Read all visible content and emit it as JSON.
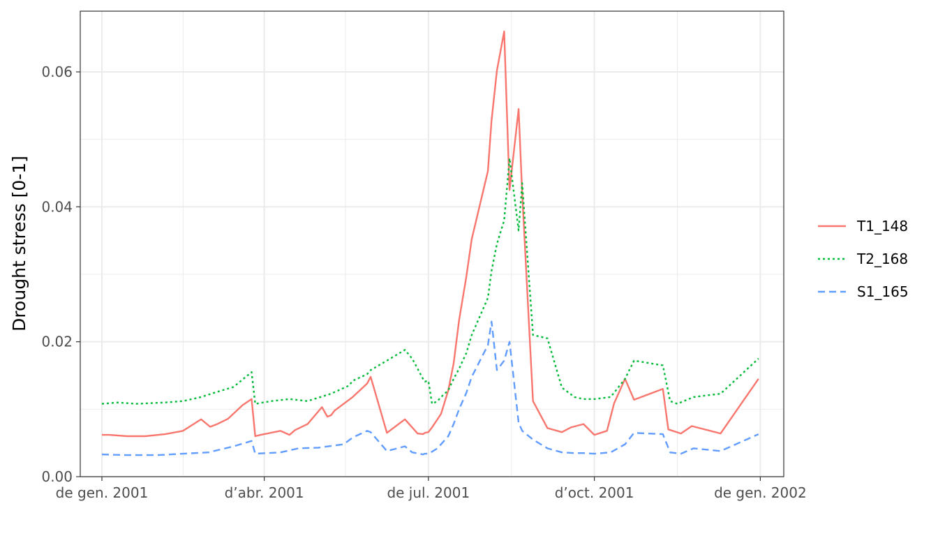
{
  "chart_data": {
    "type": "line",
    "title": "",
    "xlabel": "",
    "ylabel": "Drought stress [0-1]",
    "xlim": [
      "2000-12-20",
      "2002-01-14"
    ],
    "ylim": [
      0,
      0.069
    ],
    "grid": true,
    "legend_position": "right",
    "x_ticks": [
      {
        "date": "2001-01-01",
        "label": "de gen. 2001"
      },
      {
        "date": "2001-04-01",
        "label": "d’abr. 2001"
      },
      {
        "date": "2001-07-01",
        "label": "de jul. 2001"
      },
      {
        "date": "2001-10-01",
        "label": "d’oct. 2001"
      },
      {
        "date": "2002-01-01",
        "label": "de gen. 2002"
      }
    ],
    "x_minor_ticks": [
      "2001-02-15",
      "2001-05-16",
      "2001-08-16",
      "2001-11-16"
    ],
    "y_ticks": [
      {
        "value": 0.0,
        "label": "0.00"
      },
      {
        "value": 0.02,
        "label": "0.02"
      },
      {
        "value": 0.04,
        "label": "0.04"
      },
      {
        "value": 0.06,
        "label": "0.06"
      }
    ],
    "y_minor_ticks": [
      0.01,
      0.03,
      0.05
    ],
    "series": [
      {
        "name": "T1_148",
        "color": "#F8766D",
        "dash": "solid",
        "x": [
          "2001-01-01",
          "2001-01-05",
          "2001-01-15",
          "2001-01-25",
          "2001-02-05",
          "2001-02-15",
          "2001-02-25",
          "2001-03-02",
          "2001-03-06",
          "2001-03-12",
          "2001-03-20",
          "2001-03-25",
          "2001-03-27",
          "2001-03-30",
          "2001-04-10",
          "2001-04-15",
          "2001-04-18",
          "2001-04-25",
          "2001-05-03",
          "2001-05-06",
          "2001-05-08",
          "2001-05-10",
          "2001-05-20",
          "2001-05-28",
          "2001-05-30",
          "2001-06-08",
          "2001-06-18",
          "2001-06-25",
          "2001-06-28",
          "2001-06-29",
          "2001-07-01",
          "2001-07-03",
          "2001-07-06",
          "2001-07-08",
          "2001-07-12",
          "2001-07-15",
          "2001-07-18",
          "2001-07-22",
          "2001-07-25",
          "2001-08-03",
          "2001-08-05",
          "2001-08-08",
          "2001-08-12",
          "2001-08-15",
          "2001-08-20",
          "2001-08-22",
          "2001-08-28",
          "2001-09-05",
          "2001-09-13",
          "2001-09-18",
          "2001-09-25",
          "2001-10-01",
          "2001-10-08",
          "2001-10-12",
          "2001-10-18",
          "2001-10-23",
          "2001-11-08",
          "2001-11-11",
          "2001-11-18",
          "2001-11-24",
          "2001-12-10",
          "2001-12-31"
        ],
        "values": [
          0.0062,
          0.0062,
          0.006,
          0.006,
          0.0063,
          0.0068,
          0.0085,
          0.0074,
          0.0078,
          0.0086,
          0.0106,
          0.0115,
          0.006,
          0.0062,
          0.0068,
          0.0062,
          0.0069,
          0.0078,
          0.0103,
          0.0089,
          0.0091,
          0.0098,
          0.0118,
          0.0138,
          0.0148,
          0.0065,
          0.0085,
          0.0064,
          0.0063,
          0.0065,
          0.0066,
          0.0073,
          0.0085,
          0.0093,
          0.0128,
          0.0168,
          0.0232,
          0.0296,
          0.0352,
          0.0453,
          0.0528,
          0.0602,
          0.066,
          0.0425,
          0.0545,
          0.042,
          0.0112,
          0.0072,
          0.0066,
          0.0073,
          0.0078,
          0.0062,
          0.0068,
          0.0109,
          0.0145,
          0.0114,
          0.013,
          0.007,
          0.0064,
          0.0075,
          0.0064,
          0.0145
        ]
      },
      {
        "name": "T2_168",
        "color": "#00BA38",
        "dash": "dotted",
        "x": [
          "2001-01-01",
          "2001-01-10",
          "2001-01-20",
          "2001-02-05",
          "2001-02-15",
          "2001-02-25",
          "2001-03-05",
          "2001-03-15",
          "2001-03-25",
          "2001-03-27",
          "2001-04-05",
          "2001-04-15",
          "2001-04-25",
          "2001-05-08",
          "2001-05-18",
          "2001-05-20",
          "2001-05-28",
          "2001-05-30",
          "2001-06-08",
          "2001-06-18",
          "2001-06-22",
          "2001-06-28",
          "2001-06-29",
          "2001-07-01",
          "2001-07-03",
          "2001-07-06",
          "2001-07-08",
          "2001-07-12",
          "2001-07-15",
          "2001-07-18",
          "2001-07-22",
          "2001-07-25",
          "2001-08-03",
          "2001-08-05",
          "2001-08-08",
          "2001-08-12",
          "2001-08-15",
          "2001-08-20",
          "2001-08-22",
          "2001-08-28",
          "2001-09-05",
          "2001-09-13",
          "2001-09-20",
          "2001-09-25",
          "2001-10-01",
          "2001-10-10",
          "2001-10-18",
          "2001-10-23",
          "2001-11-08",
          "2001-11-12",
          "2001-11-16",
          "2001-11-25",
          "2001-12-10",
          "2001-12-31"
        ],
        "values": [
          0.0108,
          0.011,
          0.0108,
          0.011,
          0.0112,
          0.0118,
          0.0125,
          0.0133,
          0.0155,
          0.0108,
          0.0112,
          0.0115,
          0.0112,
          0.0123,
          0.0135,
          0.0142,
          0.0152,
          0.0158,
          0.0172,
          0.0188,
          0.0175,
          0.0145,
          0.0141,
          0.0142,
          0.0108,
          0.0112,
          0.0118,
          0.0128,
          0.0145,
          0.016,
          0.0183,
          0.021,
          0.0265,
          0.0305,
          0.0345,
          0.038,
          0.0472,
          0.0365,
          0.0435,
          0.021,
          0.0205,
          0.0132,
          0.0118,
          0.0115,
          0.0115,
          0.0118,
          0.0145,
          0.0172,
          0.0165,
          0.0112,
          0.0108,
          0.0118,
          0.0123,
          0.0175
        ]
      },
      {
        "name": "S1_165",
        "color": "#619CFF",
        "dash": "dashed",
        "x": [
          "2001-01-01",
          "2001-01-15",
          "2001-02-01",
          "2001-02-15",
          "2001-03-01",
          "2001-03-15",
          "2001-03-25",
          "2001-03-27",
          "2001-04-10",
          "2001-04-20",
          "2001-05-01",
          "2001-05-15",
          "2001-05-20",
          "2001-05-28",
          "2001-05-30",
          "2001-06-08",
          "2001-06-18",
          "2001-06-22",
          "2001-06-28",
          "2001-06-29",
          "2001-07-01",
          "2001-07-03",
          "2001-07-06",
          "2001-07-08",
          "2001-07-12",
          "2001-07-15",
          "2001-07-18",
          "2001-07-22",
          "2001-07-25",
          "2001-08-03",
          "2001-08-05",
          "2001-08-08",
          "2001-08-12",
          "2001-08-15",
          "2001-08-20",
          "2001-08-22",
          "2001-08-28",
          "2001-09-05",
          "2001-09-13",
          "2001-09-20",
          "2001-09-25",
          "2001-10-01",
          "2001-10-10",
          "2001-10-18",
          "2001-10-23",
          "2001-11-08",
          "2001-11-12",
          "2001-11-18",
          "2001-11-25",
          "2001-12-10",
          "2001-12-31"
        ],
        "values": [
          0.0033,
          0.0032,
          0.0032,
          0.0034,
          0.0036,
          0.0045,
          0.0053,
          0.0034,
          0.0036,
          0.0042,
          0.0043,
          0.0048,
          0.0058,
          0.0068,
          0.0066,
          0.0038,
          0.0045,
          0.0036,
          0.0033,
          0.0034,
          0.0034,
          0.0037,
          0.0042,
          0.0048,
          0.006,
          0.0078,
          0.01,
          0.0124,
          0.0148,
          0.0195,
          0.023,
          0.0158,
          0.0172,
          0.02,
          0.008,
          0.0068,
          0.0055,
          0.0042,
          0.0036,
          0.0035,
          0.0035,
          0.0034,
          0.0036,
          0.0048,
          0.0065,
          0.0063,
          0.0036,
          0.0034,
          0.0042,
          0.0038,
          0.0063
        ]
      }
    ]
  }
}
